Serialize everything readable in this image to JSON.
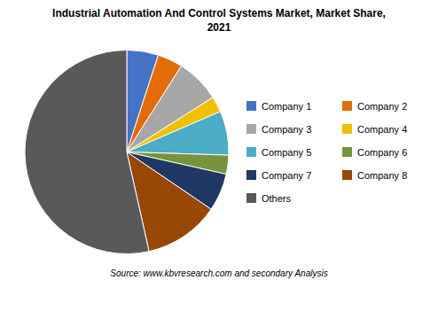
{
  "chart_data": {
    "type": "pie",
    "title": "Industrial Automation And Control Systems Market, Market Share,",
    "subtitle": "2021",
    "categories": [
      "Company 1",
      "Company 2",
      "Company 3",
      "Company 4",
      "Company 5",
      "Company 6",
      "Company 7",
      "Company 8",
      "Others"
    ],
    "values": [
      5.0,
      4.0,
      7.0,
      2.5,
      7.0,
      3.0,
      6.0,
      12.0,
      53.5
    ],
    "colors": [
      "#4472C4",
      "#E36C0A",
      "#A6A6A6",
      "#F0C000",
      "#4BACC6",
      "#77933C",
      "#1F3864",
      "#974706",
      "#595959"
    ],
    "legend": "right",
    "annotations": [
      "Source: www.kbvresearch.com  and secondary Analysis"
    ]
  }
}
